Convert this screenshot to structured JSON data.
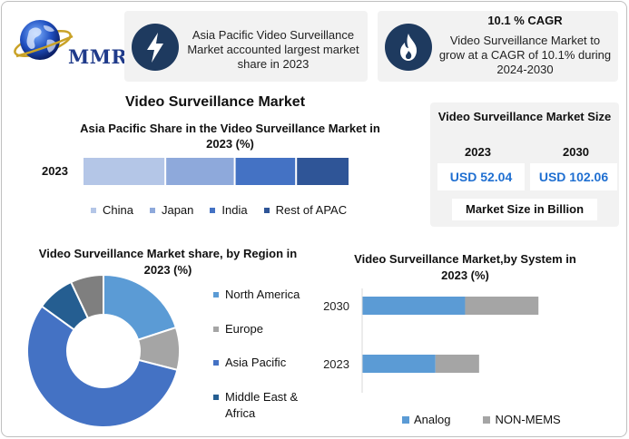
{
  "header": {
    "logo_text": "MMR",
    "box1_text": "Asia Pacific Video Surveillance Market accounted largest market share in 2023",
    "box2_cagr": "10.1 % CAGR",
    "box2_text": "Video Surveillance Market to grow at a CAGR of 10.1% during 2024-2030",
    "icon1": "lightning-bolt-icon",
    "icon2": "flame-icon"
  },
  "main_title": "Video Surveillance Market",
  "market_size": {
    "title": "Video Surveillance Market Size",
    "year1": "2023",
    "year2": "2030",
    "value1": "USD 52.04",
    "value2": "USD 102.06",
    "unit": "Market Size in Billion"
  },
  "colors": {
    "china": "#b4c6e7",
    "japan": "#8ea9db",
    "india": "#4472c4",
    "rest_apac": "#2f5597",
    "north_america": "#5b9bd5",
    "europe": "#a5a5a5",
    "asia_pacific": "#4472c4",
    "mea": "#255e91",
    "other": "#7f7f7f",
    "analog": "#5b9bd5",
    "non_mems": "#a5a5a5",
    "accent_dark": "#1e3a5f",
    "value_blue": "#1f6fd1"
  },
  "chart_data": [
    {
      "type": "bar",
      "orientation": "horizontal-stacked",
      "title": "Asia Pacific Share in the Video Surveillance Market in 2023 (%)",
      "categories": [
        "2023"
      ],
      "series": [
        {
          "name": "China",
          "values": [
            31
          ]
        },
        {
          "name": "Japan",
          "values": [
            26
          ]
        },
        {
          "name": "India",
          "values": [
            23
          ]
        },
        {
          "name": "Rest of APAC",
          "values": [
            20
          ]
        }
      ]
    },
    {
      "type": "pie",
      "title": "Video Surveillance Market share, by Region in 2023 (%)",
      "legend": [
        "North America",
        "Europe",
        "Asia Pacific",
        "Middle East & Africa"
      ],
      "slices": [
        {
          "label": "North America",
          "value": 20
        },
        {
          "label": "Europe",
          "value": 9
        },
        {
          "label": "Asia Pacific",
          "value": 56
        },
        {
          "label": "Middle East & Africa",
          "value": 8
        },
        {
          "label": "",
          "value": 7
        }
      ]
    },
    {
      "type": "bar",
      "orientation": "horizontal-stacked",
      "title": "Video Surveillance Market,by System in 2023 (%)",
      "categories": [
        "2030",
        "2023"
      ],
      "series": [
        {
          "name": "Analog",
          "values": [
            59,
            42
          ]
        },
        {
          "name": "NON-MEMS",
          "values": [
            42,
            25
          ]
        }
      ],
      "xlim": [
        0,
        130
      ]
    }
  ]
}
